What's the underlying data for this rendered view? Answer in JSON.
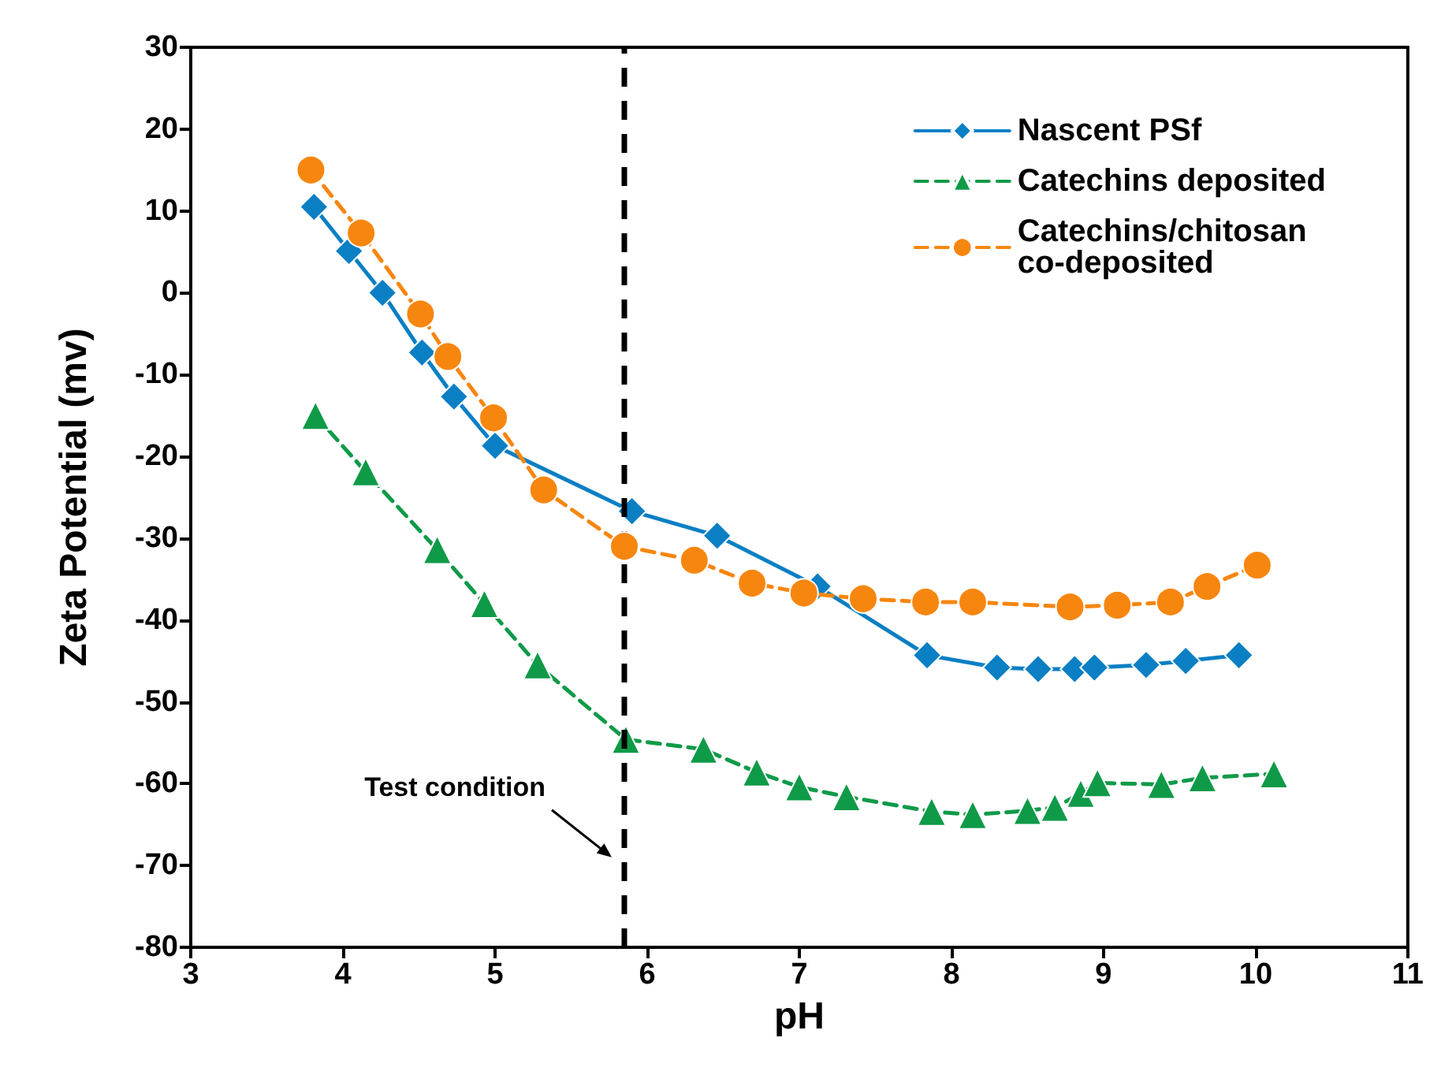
{
  "chart_data": {
    "type": "line",
    "xlabel": "pH",
    "ylabel": "Zeta Potential (mv)",
    "xlim": [
      3,
      11
    ],
    "xticks": [
      3,
      4,
      5,
      6,
      7,
      8,
      9,
      10,
      11
    ],
    "ylim": [
      -80,
      30
    ],
    "yticks": [
      -80,
      -70,
      -60,
      -50,
      -40,
      -30,
      -20,
      -10,
      0,
      10,
      20,
      30
    ],
    "grid": false,
    "legend": "top right",
    "series": [
      {
        "name": "Nascent PSf",
        "color": "#0a7fc4",
        "marker": "diamond",
        "line_style": "solid",
        "x": [
          3.81,
          4.04,
          4.26,
          4.52,
          4.73,
          5.0,
          5.9,
          6.46,
          7.12,
          7.84,
          8.3,
          8.57,
          8.81,
          8.94,
          9.28,
          9.54,
          9.89
        ],
        "values": [
          10.5,
          5.1,
          0,
          -7.3,
          -12.7,
          -18.7,
          -26.7,
          -29.7,
          -35.9,
          -44.3,
          -45.8,
          -46,
          -46,
          -45.8,
          -45.5,
          -45,
          -44.3
        ]
      },
      {
        "name": "Catechins deposited",
        "color": "#0f9a48",
        "marker": "triangle",
        "line_style": "dashed",
        "x": [
          3.82,
          4.15,
          4.62,
          4.93,
          5.28,
          5.86,
          6.37,
          6.72,
          7.0,
          7.31,
          7.87,
          8.14,
          8.5,
          8.68,
          8.85,
          8.96,
          9.38,
          9.65,
          10.12
        ],
        "values": [
          -15,
          -21.9,
          -31.4,
          -38,
          -45.5,
          -54.6,
          -55.8,
          -58.6,
          -60.4,
          -61.6,
          -63.4,
          -63.8,
          -63.3,
          -62.9,
          -61.2,
          -59.9,
          -60.1,
          -59.3,
          -58.8
        ]
      },
      {
        "name": "Catechins/chitosan co-deposited",
        "color": "#f7860f",
        "marker": "circle",
        "line_style": "dashed",
        "x": [
          3.79,
          4.12,
          4.51,
          4.69,
          4.99,
          5.32,
          5.85,
          6.31,
          6.69,
          7.03,
          7.42,
          7.83,
          8.14,
          8.78,
          9.09,
          9.44,
          9.68,
          10.01
        ],
        "values": [
          15,
          7.3,
          -2.6,
          -7.8,
          -15.3,
          -24.1,
          -31,
          -32.7,
          -35.5,
          -36.7,
          -37.4,
          -37.8,
          -37.8,
          -38.4,
          -38.2,
          -37.8,
          -35.9,
          -33.3
        ]
      }
    ],
    "ref_lines": [
      {
        "axis": "x",
        "value": 5.85,
        "color": "#000000",
        "line_style": "dashed"
      }
    ],
    "annotations": [
      "Test condition"
    ]
  }
}
